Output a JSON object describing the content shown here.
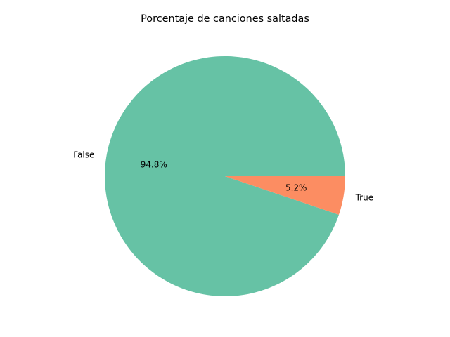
{
  "chart_data": {
    "type": "pie",
    "title": "Porcentaje de canciones saltadas",
    "slices": [
      {
        "label": "False",
        "value": 94.8,
        "pct_label": "94.8%",
        "color": "#66c2a5"
      },
      {
        "label": "True",
        "value": 5.2,
        "pct_label": "5.2%",
        "color": "#fc8d62"
      }
    ],
    "start_angle_deg": 0,
    "direction": "counterclockwise"
  }
}
